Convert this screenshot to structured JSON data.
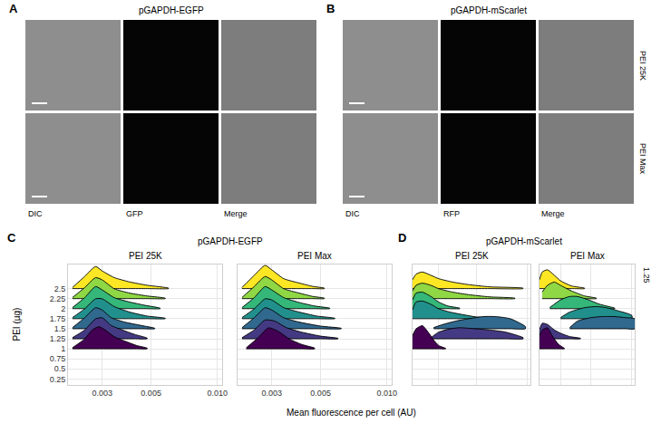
{
  "figure": {
    "image_panels": [
      {
        "letter": "A",
        "title": "pGAPDH-EGFP",
        "columns": [
          "DIC",
          "GFP",
          "Merge"
        ]
      },
      {
        "letter": "B",
        "title": "pGAPDH-mScarlet",
        "columns": [
          "DIC",
          "RFP",
          "Merge"
        ],
        "rows": [
          "PEI 25K",
          "PEI Max"
        ]
      }
    ],
    "chart_groups": [
      {
        "letter": "C",
        "title": "pGAPDH-EGFP"
      },
      {
        "letter": "D",
        "title": "pGAPDH-mScarlet"
      }
    ],
    "xlabel": "Mean fluorescence per cell (AU)",
    "ylabel": "PEI (µg)",
    "strip": "1.25"
  },
  "chart_data": [
    {
      "type": "ridgeline",
      "title": "PEI 25K",
      "log": "x",
      "grid": true,
      "tick_labels": true,
      "xlim": [
        0.0021,
        0.0105
      ],
      "xticks": [
        0.003,
        0.005,
        {
          "value": 0.01,
          "label": "0.010"
        }
      ],
      "ylim": [
        0.1,
        3.1
      ],
      "yticks": [
        0.25,
        0.5,
        0.75,
        1,
        1.25,
        1.5,
        1.75,
        2,
        2.25,
        2.5
      ],
      "series": [
        {
          "y": 1,
          "color": "#440154",
          "x": [
            0.0022,
            0.0025,
            0.0027,
            0.0029,
            0.0031,
            0.0034,
            0.0038,
            0.0043,
            0.0048
          ],
          "density": [
            0.05,
            0.45,
            0.85,
            1,
            0.85,
            0.55,
            0.35,
            0.15,
            0.03
          ]
        },
        {
          "y": 1.25,
          "color": "#443a83",
          "x": [
            0.0022,
            0.0025,
            0.0028,
            0.003,
            0.0033,
            0.0037,
            0.0042,
            0.0048
          ],
          "density": [
            0.05,
            0.4,
            0.9,
            0.95,
            0.6,
            0.4,
            0.2,
            0.03
          ]
        },
        {
          "y": 1.5,
          "color": "#31688e",
          "x": [
            0.0022,
            0.0025,
            0.0028,
            0.003,
            0.0033,
            0.0038,
            0.0045,
            0.0052
          ],
          "density": [
            0.05,
            0.5,
            0.95,
            0.85,
            0.5,
            0.3,
            0.15,
            0.02
          ]
        },
        {
          "y": 1.75,
          "color": "#21908c",
          "x": [
            0.0022,
            0.0025,
            0.0028,
            0.003,
            0.0034,
            0.004,
            0.0048,
            0.0058
          ],
          "density": [
            0.05,
            0.45,
            0.9,
            0.9,
            0.55,
            0.3,
            0.12,
            0.02
          ]
        },
        {
          "y": 2,
          "color": "#35b779",
          "x": [
            0.0022,
            0.0025,
            0.0028,
            0.003,
            0.0034,
            0.004,
            0.0047,
            0.0055
          ],
          "density": [
            0.05,
            0.5,
            1,
            0.85,
            0.5,
            0.3,
            0.15,
            0.02
          ]
        },
        {
          "y": 2.25,
          "color": "#8fd744",
          "x": [
            0.0022,
            0.0025,
            0.0028,
            0.003,
            0.0034,
            0.004,
            0.0048,
            0.0058
          ],
          "density": [
            0.05,
            0.5,
            0.95,
            0.85,
            0.45,
            0.25,
            0.12,
            0.02
          ]
        },
        {
          "y": 2.5,
          "color": "#fde725",
          "x": [
            0.0022,
            0.0025,
            0.0028,
            0.003,
            0.0034,
            0.004,
            0.0048,
            0.006
          ],
          "density": [
            0.05,
            0.55,
            1,
            0.8,
            0.5,
            0.3,
            0.15,
            0.02
          ]
        }
      ]
    },
    {
      "type": "ridgeline",
      "title": "PEI Max",
      "log": "x",
      "grid": true,
      "tick_labels": "x",
      "xlim": [
        0.0021,
        0.0105
      ],
      "xticks": [
        0.003,
        0.005,
        {
          "value": 0.01,
          "label": "0.010"
        }
      ],
      "ylim": [
        0.1,
        3.1
      ],
      "yticks": [
        0.25,
        0.5,
        0.75,
        1,
        1.25,
        1.5,
        1.75,
        2,
        2.25,
        2.5
      ],
      "series": [
        {
          "y": 1,
          "color": "#440154",
          "x": [
            0.0023,
            0.0026,
            0.0029,
            0.0032,
            0.0036,
            0.0041,
            0.0047
          ],
          "density": [
            0.05,
            0.5,
            0.95,
            0.8,
            0.45,
            0.2,
            0.03
          ]
        },
        {
          "y": 1.25,
          "color": "#443a83",
          "x": [
            0.0022,
            0.0025,
            0.0028,
            0.0031,
            0.0035,
            0.0041,
            0.005,
            0.006
          ],
          "density": [
            0.05,
            0.4,
            0.85,
            0.8,
            0.5,
            0.3,
            0.12,
            0.02
          ]
        },
        {
          "y": 1.5,
          "color": "#31688e",
          "x": [
            0.0022,
            0.0025,
            0.0028,
            0.003,
            0.0034,
            0.004,
            0.005,
            0.0062
          ],
          "density": [
            0.05,
            0.5,
            0.95,
            0.85,
            0.5,
            0.3,
            0.12,
            0.02
          ]
        },
        {
          "y": 1.75,
          "color": "#21908c",
          "x": [
            0.0022,
            0.0025,
            0.0028,
            0.003,
            0.0034,
            0.004,
            0.0048,
            0.0058
          ],
          "density": [
            0.05,
            0.45,
            0.9,
            0.85,
            0.5,
            0.3,
            0.12,
            0.02
          ]
        },
        {
          "y": 2,
          "color": "#35b779",
          "x": [
            0.0022,
            0.0025,
            0.0028,
            0.003,
            0.0034,
            0.004,
            0.0047,
            0.0055
          ],
          "density": [
            0.05,
            0.5,
            1,
            0.85,
            0.5,
            0.28,
            0.12,
            0.02
          ]
        },
        {
          "y": 2.25,
          "color": "#8fd744",
          "x": [
            0.0022,
            0.0025,
            0.0028,
            0.003,
            0.0034,
            0.004,
            0.0046,
            0.0052
          ],
          "density": [
            0.05,
            0.55,
            1,
            0.85,
            0.45,
            0.25,
            0.1,
            0.02
          ]
        },
        {
          "y": 2.5,
          "color": "#fde725",
          "x": [
            0.0022,
            0.0025,
            0.0028,
            0.003,
            0.0034,
            0.004,
            0.0046,
            0.0052
          ],
          "density": [
            0.05,
            0.6,
            1.05,
            0.85,
            0.45,
            0.25,
            0.1,
            0.02
          ]
        }
      ]
    },
    {
      "type": "ridgeline",
      "title": "PEI 25K",
      "log": "x",
      "grid": true,
      "tick_labels": false,
      "xlim": [
        0.0021,
        0.0105
      ],
      "xticks": [
        0.003,
        0.005,
        {
          "value": 0.01,
          "label": "0.010"
        }
      ],
      "ylim": [
        0.1,
        3.1
      ],
      "yticks": [
        0.25,
        0.5,
        0.75,
        1,
        1.25,
        1.5,
        1.75,
        2,
        2.25,
        2.5
      ],
      "series": [
        {
          "y": 1,
          "color": "#440154",
          "x": [
            0.0021,
            0.0022,
            0.0024,
            0.0026,
            0.0028,
            0.003,
            0.0033
          ],
          "density": [
            0.6,
            0.9,
            1.05,
            0.75,
            0.4,
            0.15,
            0.02
          ]
        },
        {
          "y": 1.25,
          "color": "#443a83",
          "x": [
            0.0027,
            0.003,
            0.0035,
            0.004,
            0.005,
            0.006,
            0.0075,
            0.0095
          ],
          "density": [
            0.05,
            0.3,
            0.45,
            0.5,
            0.45,
            0.4,
            0.3,
            0.05
          ]
        },
        {
          "y": 1.5,
          "color": "#31688e",
          "x": [
            0.0028,
            0.0032,
            0.0038,
            0.0045,
            0.0055,
            0.0065,
            0.008,
            0.0098
          ],
          "density": [
            0.05,
            0.2,
            0.35,
            0.45,
            0.55,
            0.55,
            0.45,
            0.1
          ]
        },
        {
          "y": 1.75,
          "color": "#21908c",
          "x": [
            0.0021,
            0.0022,
            0.0024,
            0.0027,
            0.003,
            0.0035,
            0.0042,
            0.005,
            0.0062
          ],
          "density": [
            0.4,
            0.75,
            0.8,
            0.65,
            0.45,
            0.3,
            0.18,
            0.08,
            0.02
          ]
        },
        {
          "y": 2,
          "color": "#35b779",
          "x": [
            0.0021,
            0.0022,
            0.0024,
            0.0027,
            0.003,
            0.0034,
            0.004
          ],
          "density": [
            0.4,
            0.7,
            0.75,
            0.55,
            0.3,
            0.12,
            0.02
          ]
        },
        {
          "y": 2.25,
          "color": "#8fd744",
          "x": [
            0.0021,
            0.0022,
            0.0024,
            0.0027,
            0.003,
            0.0036,
            0.0045,
            0.006,
            0.0085
          ],
          "density": [
            0.35,
            0.6,
            0.7,
            0.6,
            0.45,
            0.3,
            0.18,
            0.08,
            0.02
          ]
        },
        {
          "y": 2.5,
          "color": "#fde725",
          "x": [
            0.0021,
            0.0022,
            0.0024,
            0.0027,
            0.003,
            0.0036,
            0.0045,
            0.006,
            0.0095
          ],
          "density": [
            0.4,
            0.65,
            0.75,
            0.6,
            0.45,
            0.3,
            0.18,
            0.08,
            0.02
          ]
        }
      ]
    },
    {
      "type": "ridgeline",
      "title": "PEI Max",
      "log": "x",
      "grid": true,
      "tick_labels": false,
      "xlim": [
        0.0021,
        0.0105
      ],
      "xticks": [
        0.003,
        0.005,
        {
          "value": 0.01,
          "label": "0.010"
        }
      ],
      "ylim": [
        0.1,
        3.1
      ],
      "yticks": [
        0.25,
        0.5,
        0.75,
        1,
        1.25,
        1.5,
        1.75,
        2,
        2.25,
        2.5
      ],
      "series": [
        {
          "y": 1,
          "color": "#440154",
          "x": [
            0.0021,
            0.0022,
            0.0024,
            0.0026,
            0.0029,
            0.0032
          ],
          "density": [
            0.6,
            0.85,
            0.95,
            0.6,
            0.2,
            0.02
          ]
        },
        {
          "y": 1.25,
          "color": "#443a83",
          "x": [
            0.0021,
            0.0022,
            0.0024,
            0.0027,
            0.003,
            0.0035,
            0.0042
          ],
          "density": [
            0.4,
            0.7,
            0.65,
            0.4,
            0.25,
            0.1,
            0.02
          ]
        },
        {
          "y": 1.5,
          "color": "#31688e",
          "x": [
            0.0035,
            0.004,
            0.005,
            0.006,
            0.0075,
            0.009,
            0.0105
          ],
          "density": [
            0.05,
            0.35,
            0.5,
            0.55,
            0.55,
            0.5,
            0.45
          ]
        },
        {
          "y": 1.75,
          "color": "#21908c",
          "x": [
            0.003,
            0.0035,
            0.0045,
            0.0055,
            0.0065,
            0.008,
            0.01
          ],
          "density": [
            0.05,
            0.3,
            0.5,
            0.55,
            0.5,
            0.35,
            0.15
          ]
        },
        {
          "y": 2,
          "color": "#35b779",
          "x": [
            0.0025,
            0.003,
            0.0035,
            0.004,
            0.0048,
            0.0058,
            0.0075
          ],
          "density": [
            0.05,
            0.4,
            0.55,
            0.55,
            0.4,
            0.2,
            0.02
          ]
        },
        {
          "y": 2.25,
          "color": "#8fd744",
          "x": [
            0.0022,
            0.0024,
            0.0027,
            0.003,
            0.0036,
            0.0045,
            0.0055
          ],
          "density": [
            0.3,
            0.6,
            0.75,
            0.6,
            0.35,
            0.12,
            0.02
          ]
        },
        {
          "y": 2.5,
          "color": "#fde725",
          "x": [
            0.0021,
            0.0022,
            0.0024,
            0.0027,
            0.003,
            0.0036,
            0.0045
          ],
          "density": [
            0.4,
            0.75,
            0.85,
            0.6,
            0.35,
            0.12,
            0.02
          ]
        }
      ]
    }
  ]
}
